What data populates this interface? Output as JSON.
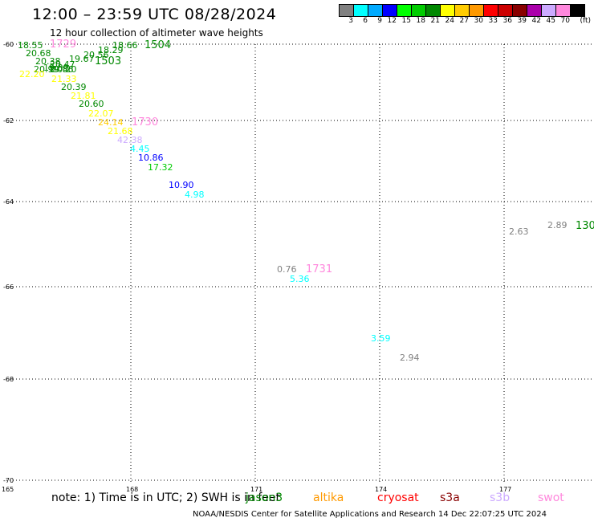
{
  "header": {
    "title": "12:00 – 23:59 UTC 08/28/2024",
    "subtitle": "12 hour collection of altimeter wave heights"
  },
  "colorbar": {
    "colors": [
      "#808080",
      "#00ffff",
      "#00aaff",
      "#0000ff",
      "#00ff00",
      "#00cc00",
      "#008800",
      "#ffff00",
      "#ffcc00",
      "#ff9900",
      "#ff0000",
      "#cc0000",
      "#880000",
      "#aa00aa",
      "#ccaaff",
      "#ff88dd",
      "#000000"
    ],
    "labels": [
      "3",
      "6",
      "9",
      "12",
      "15",
      "18",
      "21",
      "24",
      "27",
      "30",
      "33",
      "36",
      "39",
      "42",
      "45",
      "70"
    ],
    "unit": "(ft)"
  },
  "map": {
    "lat_ticks": [
      "-60",
      "-62",
      "-64",
      "-66",
      "-68",
      "-70"
    ],
    "lon_ticks": [
      "165",
      "168",
      "171",
      "174",
      "177"
    ]
  },
  "markers": [
    {
      "text": "18.55",
      "color": "#008800"
    },
    {
      "text": "1729",
      "color": "#ff88dd"
    },
    {
      "text": "18.66",
      "color": "#008800"
    },
    {
      "text": "1504",
      "color": "#008800"
    },
    {
      "text": "20.68",
      "color": "#008800"
    },
    {
      "text": "18.29",
      "color": "#008800"
    },
    {
      "text": "20.56",
      "color": "#008800"
    },
    {
      "text": "20.38",
      "color": "#008800"
    },
    {
      "text": "19.67",
      "color": "#008800"
    },
    {
      "text": "20.47",
      "color": "#008800"
    },
    {
      "text": "1503",
      "color": "#008800"
    },
    {
      "text": "20.99",
      "color": "#008800"
    },
    {
      "text": "19.89",
      "color": "#008800"
    },
    {
      "text": "20.20",
      "color": "#008800"
    },
    {
      "text": "22.20",
      "color": "#ffff00"
    },
    {
      "text": "19.86",
      "color": "#008800"
    },
    {
      "text": "21.33",
      "color": "#ffff00"
    },
    {
      "text": "20.39",
      "color": "#008800"
    },
    {
      "text": "21.81",
      "color": "#ffff00"
    },
    {
      "text": "20.60",
      "color": "#008800"
    },
    {
      "text": "22.07",
      "color": "#ffff00"
    },
    {
      "text": "24.14",
      "color": "#ffcc00"
    },
    {
      "text": "1730",
      "color": "#ff88dd"
    },
    {
      "text": "21.68",
      "color": "#ffff00"
    },
    {
      "text": "42.38",
      "color": "#ccaaff"
    },
    {
      "text": "4.45",
      "color": "#00ffff"
    },
    {
      "text": "10.86",
      "color": "#0000ff"
    },
    {
      "text": "17.32",
      "color": "#00cc00"
    },
    {
      "text": "10.90",
      "color": "#0000ff"
    },
    {
      "text": "4.98",
      "color": "#00ffff"
    },
    {
      "text": "2.89",
      "color": "#808080"
    },
    {
      "text": "130",
      "color": "#008800"
    },
    {
      "text": "2.63",
      "color": "#808080"
    },
    {
      "text": "0.76",
      "color": "#808080"
    },
    {
      "text": "1731",
      "color": "#ff88dd"
    },
    {
      "text": "5.36",
      "color": "#00ffff"
    },
    {
      "text": "3.59",
      "color": "#00ffff"
    },
    {
      "text": "2.94",
      "color": "#808080"
    }
  ],
  "note": "note: 1) Time is in UTC; 2) SWH is in feet",
  "legend": [
    {
      "name": "jason3",
      "color": "#008800"
    },
    {
      "name": "altika",
      "color": "#ff9900"
    },
    {
      "name": "cryosat",
      "color": "#ff0000"
    },
    {
      "name": "s3a",
      "color": "#880000"
    },
    {
      "name": "s3b",
      "color": "#ccaaff"
    },
    {
      "name": "swot",
      "color": "#ff88dd"
    }
  ],
  "footer": "NOAA/NESDIS Center for Satellite Applications and Research    14 Dec 22:07:25 UTC 2024"
}
